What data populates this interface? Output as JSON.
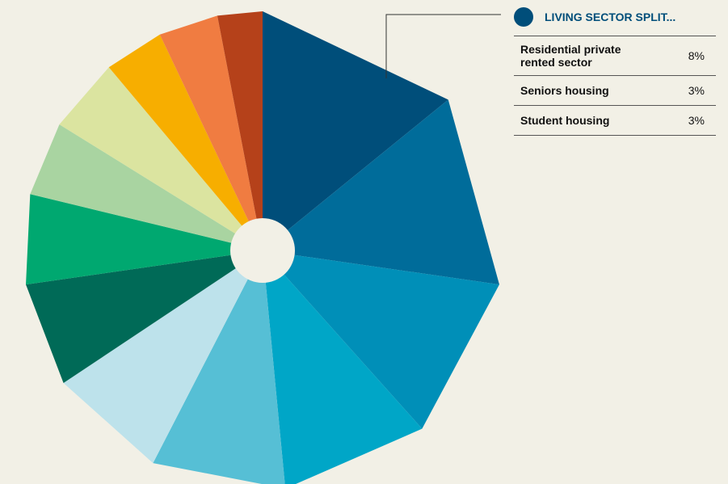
{
  "chart_data": {
    "type": "pie",
    "categories": [
      null,
      null,
      null,
      null,
      null,
      null,
      null,
      null,
      null,
      null,
      null,
      null,
      null
    ],
    "values": [
      14,
      13,
      11,
      10,
      9,
      8,
      7,
      6,
      5,
      5,
      4,
      4,
      3
    ],
    "colors": [
      "#004e7a",
      "#006c9a",
      "#008fb8",
      "#00a6c7",
      "#56bfd5",
      "#bde2eb",
      "#006a57",
      "#00a870",
      "#a9d4a1",
      "#dbe4a0",
      "#f7ae00",
      "#f07c41",
      "#b5411a"
    ]
  },
  "tooltip": {
    "title": "LIVING SECTOR SPLIT...",
    "rows": [
      [
        "Residential private rented sector",
        "8%"
      ],
      [
        "Seniors housing",
        "3%"
      ],
      [
        "Student housing",
        "3%"
      ]
    ]
  }
}
